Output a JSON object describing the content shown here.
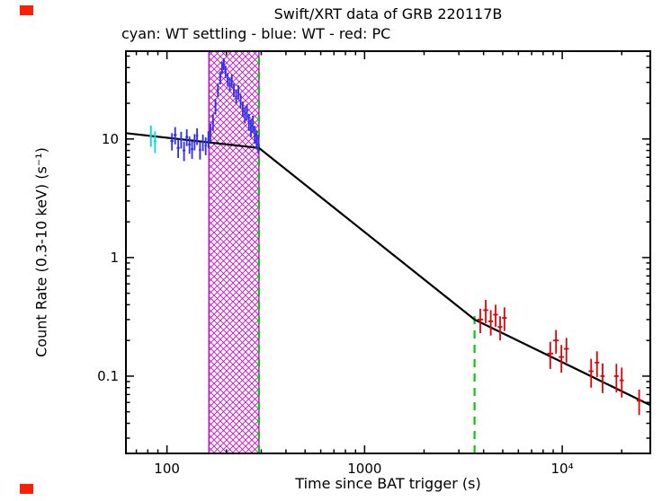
{
  "corner_markers": {
    "color": "#ff1e00"
  },
  "chart_data": {
    "type": "scatter",
    "title": "Swift/XRT data of GRB 220117B",
    "subtitle": "cyan: WT settling - blue: WT - red: PC",
    "xlabel": "Time since BAT trigger (s)",
    "ylabel": "Count Rate (0.3-10 keV) (s⁻¹)",
    "xscale": "log",
    "yscale": "log",
    "xlim": [
      62,
      27900
    ],
    "ylim": [
      0.0223,
      55
    ],
    "grid": false,
    "xticks": [
      {
        "value": 100,
        "label": "100"
      },
      {
        "value": 1000,
        "label": "1000"
      },
      {
        "value": 10000,
        "label": "10⁴"
      }
    ],
    "yticks": [
      {
        "value": 10,
        "label": "10"
      },
      {
        "value": 1,
        "label": "1"
      },
      {
        "value": 0.1,
        "label": "0.1"
      }
    ],
    "series": [
      {
        "name": "WT settling",
        "color": "#00dede",
        "points": [
          [
            83,
            10.8,
            1.5,
            2.2
          ],
          [
            87,
            9.6,
            1.5,
            2.0
          ]
        ]
      },
      {
        "name": "WT",
        "color": "#2d2df0",
        "points": [
          [
            106,
            9.6,
            2,
            1.6
          ],
          [
            110,
            10.8,
            2,
            1.8
          ],
          [
            114,
            8.4,
            2,
            1.5
          ],
          [
            118,
            9.9,
            2,
            1.6
          ],
          [
            122,
            8.0,
            2,
            1.5
          ],
          [
            126,
            10.4,
            2,
            1.7
          ],
          [
            130,
            9.0,
            2,
            1.5
          ],
          [
            134,
            8.2,
            2,
            1.4
          ],
          [
            138,
            9.5,
            2,
            1.5
          ],
          [
            142,
            10.6,
            2,
            1.7
          ],
          [
            147,
            8.1,
            2,
            1.4
          ],
          [
            152,
            9.4,
            2,
            1.5
          ],
          [
            157,
            8.8,
            2,
            1.5
          ],
          [
            162,
            10.0,
            2,
            1.6
          ],
          [
            166,
            11.5,
            2,
            1.9
          ],
          [
            171,
            14,
            2,
            2.3
          ],
          [
            176,
            19,
            2,
            2.8
          ],
          [
            181,
            26,
            2,
            3.5
          ],
          [
            186,
            33,
            2,
            4.2
          ],
          [
            190,
            40,
            2,
            4.8
          ],
          [
            194,
            43,
            2,
            5.0
          ],
          [
            198,
            37,
            2,
            4.5
          ],
          [
            203,
            32,
            2,
            4.1
          ],
          [
            208,
            29,
            2,
            3.8
          ],
          [
            213,
            31,
            2,
            4.0
          ],
          [
            218,
            26,
            2,
            3.5
          ],
          [
            224,
            23,
            2,
            3.2
          ],
          [
            230,
            25,
            2,
            3.4
          ],
          [
            236,
            21,
            2,
            3.0
          ],
          [
            242,
            18,
            2,
            2.7
          ],
          [
            248,
            16,
            2,
            2.5
          ],
          [
            254,
            17,
            2,
            2.6
          ],
          [
            260,
            14,
            2,
            2.3
          ],
          [
            266,
            12.5,
            2,
            2.1
          ],
          [
            272,
            13.5,
            2,
            2.2
          ],
          [
            278,
            11,
            2,
            1.9
          ],
          [
            284,
            10,
            2,
            1.8
          ],
          [
            290,
            9.2,
            2,
            1.7
          ]
        ]
      },
      {
        "name": "PC",
        "color": "#e80000",
        "points": [
          [
            3850,
            0.3,
            130,
            0.07
          ],
          [
            4100,
            0.36,
            120,
            0.08
          ],
          [
            4350,
            0.29,
            120,
            0.07
          ],
          [
            4600,
            0.33,
            130,
            0.07
          ],
          [
            4850,
            0.26,
            130,
            0.06
          ],
          [
            5100,
            0.31,
            140,
            0.07
          ],
          [
            8700,
            0.155,
            300,
            0.04
          ],
          [
            9300,
            0.2,
            300,
            0.045
          ],
          [
            9900,
            0.145,
            300,
            0.038
          ],
          [
            10500,
            0.17,
            300,
            0.04
          ],
          [
            14000,
            0.11,
            400,
            0.03
          ],
          [
            15000,
            0.13,
            400,
            0.032
          ],
          [
            16000,
            0.1,
            400,
            0.028
          ],
          [
            18800,
            0.1,
            500,
            0.027
          ],
          [
            20000,
            0.092,
            500,
            0.026
          ],
          [
            24500,
            0.062,
            700,
            0.015
          ]
        ]
      }
    ],
    "model": {
      "name": "broken power-law fit",
      "color": "#000000",
      "vertices": [
        [
          62,
          11.2
        ],
        [
          292,
          8.4
        ],
        [
          3600,
          0.3
        ],
        [
          27900,
          0.057
        ]
      ]
    },
    "flare_region": {
      "x0": 163,
      "x1": 292,
      "color": "#c800c8"
    },
    "vlines": [
      {
        "x": 292,
        "y0": 0.0223,
        "y1": 55,
        "color": "#00cc00",
        "style": "dashed"
      },
      {
        "x": 3600,
        "y0": 0.0223,
        "y1": 0.33,
        "color": "#00cc00",
        "style": "dashed"
      }
    ]
  }
}
